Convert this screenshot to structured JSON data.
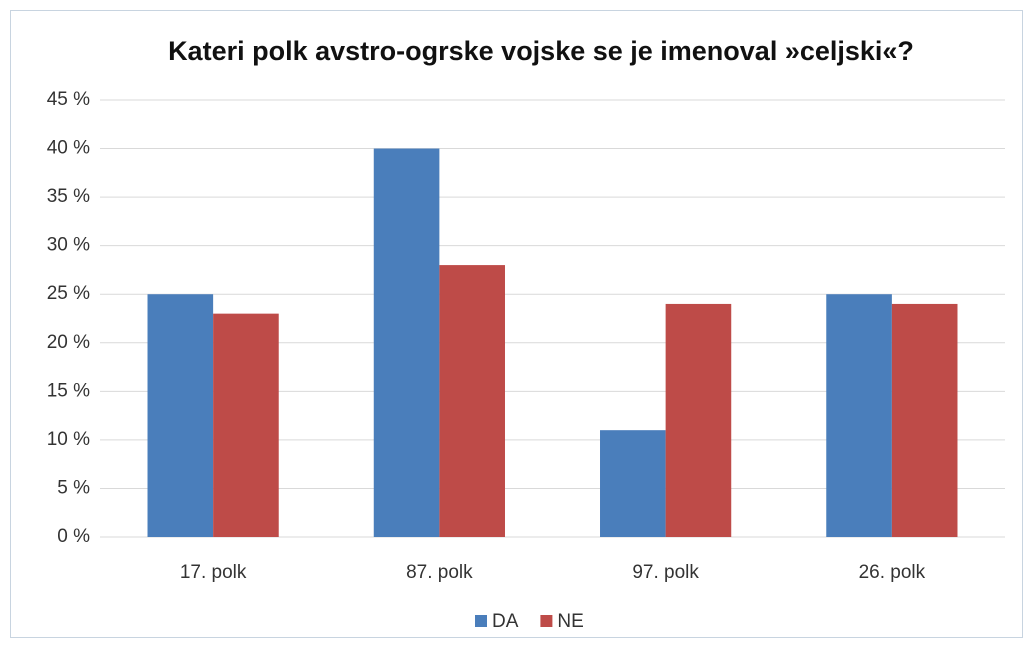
{
  "chart_data": {
    "type": "bar",
    "title": "Kateri polk avstro-ogrske vojske se je imenoval »celjski«?",
    "categories": [
      "17. polk",
      "87. polk",
      "97. polk",
      "26. polk"
    ],
    "series": [
      {
        "name": "DA",
        "color": "#4a7ebb",
        "values": [
          25,
          40,
          11,
          25
        ]
      },
      {
        "name": "NE",
        "color": "#be4b48",
        "values": [
          23,
          28,
          24,
          24
        ]
      }
    ],
    "ylim": [
      0,
      45
    ],
    "yticks": [
      {
        "value": 0,
        "label": "0 %"
      },
      {
        "value": 5,
        "label": "5 %"
      },
      {
        "value": 10,
        "label": "10 %"
      },
      {
        "value": 15,
        "label": "15 %"
      },
      {
        "value": 20,
        "label": "20 %"
      },
      {
        "value": 25,
        "label": "25 %"
      },
      {
        "value": 30,
        "label": "30 %"
      },
      {
        "value": 35,
        "label": "35 %"
      },
      {
        "value": 40,
        "label": "40 %"
      },
      {
        "value": 45,
        "label": "45 %"
      }
    ],
    "grid": true,
    "legend": "bottom"
  }
}
